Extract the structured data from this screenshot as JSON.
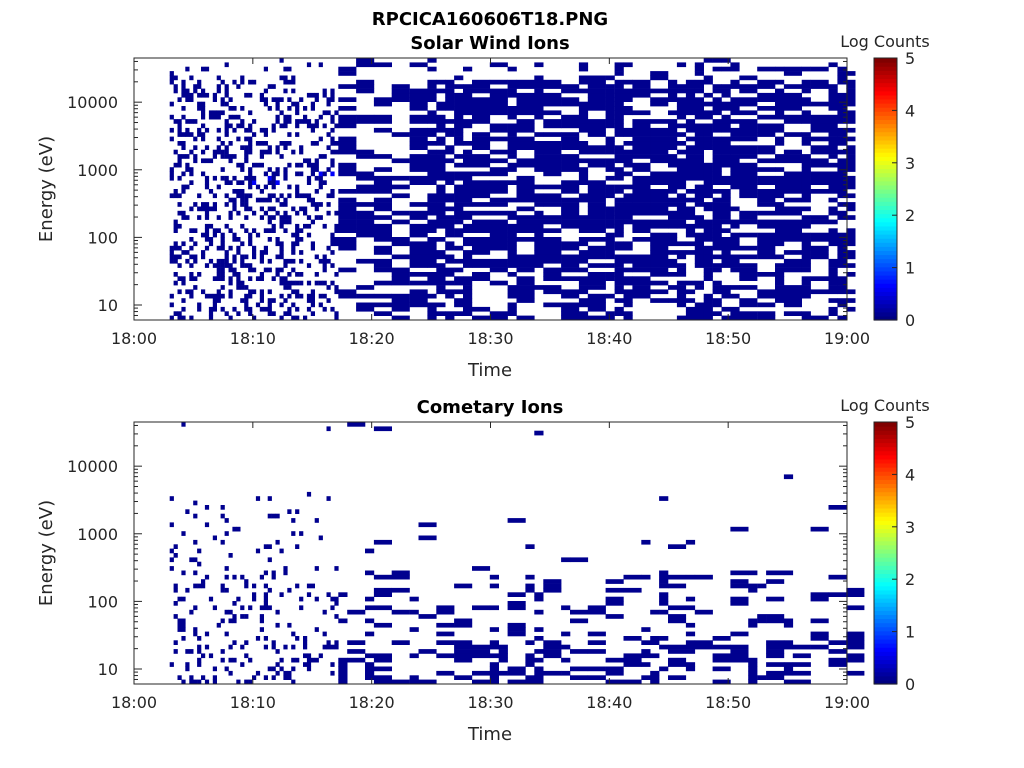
{
  "figure_title": "RPCICA160606T18.PNG",
  "chart_data": [
    {
      "type": "heatmap",
      "title": "Solar Wind Ions",
      "xlabel": "Time",
      "ylabel": "Energy (eV)",
      "x_ticks": [
        "18:00",
        "18:10",
        "18:20",
        "18:30",
        "18:40",
        "18:50",
        "19:00"
      ],
      "y_ticks": [
        "10",
        "100",
        "1000",
        "10000"
      ],
      "y_scale": "log",
      "y_range": [
        6,
        45000
      ],
      "x_range": [
        "18:00",
        "19:00"
      ],
      "data_start": "18:03",
      "colorbar": {
        "label": "Log Counts",
        "ticks": [
          "0",
          "1",
          "2",
          "3",
          "4",
          "5"
        ],
        "range": [
          0,
          5
        ],
        "colormap": "jet"
      },
      "density": {
        "noise_fraction_until_18_17": 0.35,
        "dense_fraction_after_18_22": 0.75
      },
      "dominant_level": 0,
      "occasional_level": 0.5
    },
    {
      "type": "heatmap",
      "title": "Cometary Ions",
      "xlabel": "Time",
      "ylabel": "Energy (eV)",
      "x_ticks": [
        "18:00",
        "18:10",
        "18:20",
        "18:30",
        "18:40",
        "18:50",
        "19:00"
      ],
      "y_ticks": [
        "10",
        "100",
        "1000",
        "10000"
      ],
      "y_scale": "log",
      "y_range": [
        6,
        45000
      ],
      "x_range": [
        "18:00",
        "19:00"
      ],
      "data_start": "18:03",
      "colorbar": {
        "label": "Log Counts",
        "ticks": [
          "0",
          "1",
          "2",
          "3",
          "4",
          "5"
        ],
        "range": [
          0,
          5
        ],
        "colormap": "jet"
      },
      "density": {
        "noise_fraction_until_18_17": 0.1,
        "dense_fraction_low_energy": 0.45
      },
      "dominant_level": 0
    }
  ],
  "colors": {
    "low": "#00008f",
    "mid_blue": "#0030ff",
    "high": "#800000"
  }
}
